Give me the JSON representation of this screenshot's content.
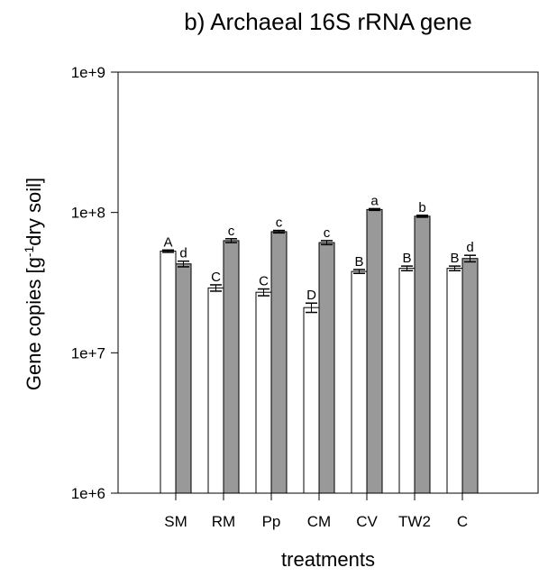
{
  "chart_data": {
    "type": "bar",
    "title": "b) Archaeal 16S rRNA gene",
    "xlabel": "treatments",
    "ylabel_main": "Gene copies [g",
    "ylabel_sup": "-1",
    "ylabel_rest": "dry soil]",
    "yscale": "log",
    "ylim": [
      1000000,
      1000000000
    ],
    "yticks": [
      1000000,
      10000000,
      100000000,
      1000000000
    ],
    "ytick_labels": [
      "1e+6",
      "1e+7",
      "1e+8",
      "1e+9"
    ],
    "grid": false,
    "categories": [
      "SM",
      "RM",
      "Pp",
      "CM",
      "CV",
      "TW2",
      "C"
    ],
    "series": [
      {
        "color": "#ffffff",
        "values": [
          53000000,
          29000000,
          27000000,
          21000000,
          38000000,
          40000000,
          40000000
        ],
        "errors": [
          1000000,
          1500000,
          1500000,
          1600000,
          1200000,
          1500000,
          1500000
        ],
        "letters": [
          "A",
          "C",
          "C",
          "D",
          "B",
          "B",
          "B"
        ]
      },
      {
        "color": "#999999",
        "values": [
          43000000,
          63000000,
          73000000,
          61000000,
          105000000,
          94000000,
          47000000
        ],
        "errors": [
          2000000,
          2000000,
          1500000,
          2000000,
          1500000,
          1500000,
          2500000
        ],
        "letters": [
          "d",
          "c",
          "c",
          "c",
          "a",
          "b",
          "d"
        ]
      }
    ]
  }
}
